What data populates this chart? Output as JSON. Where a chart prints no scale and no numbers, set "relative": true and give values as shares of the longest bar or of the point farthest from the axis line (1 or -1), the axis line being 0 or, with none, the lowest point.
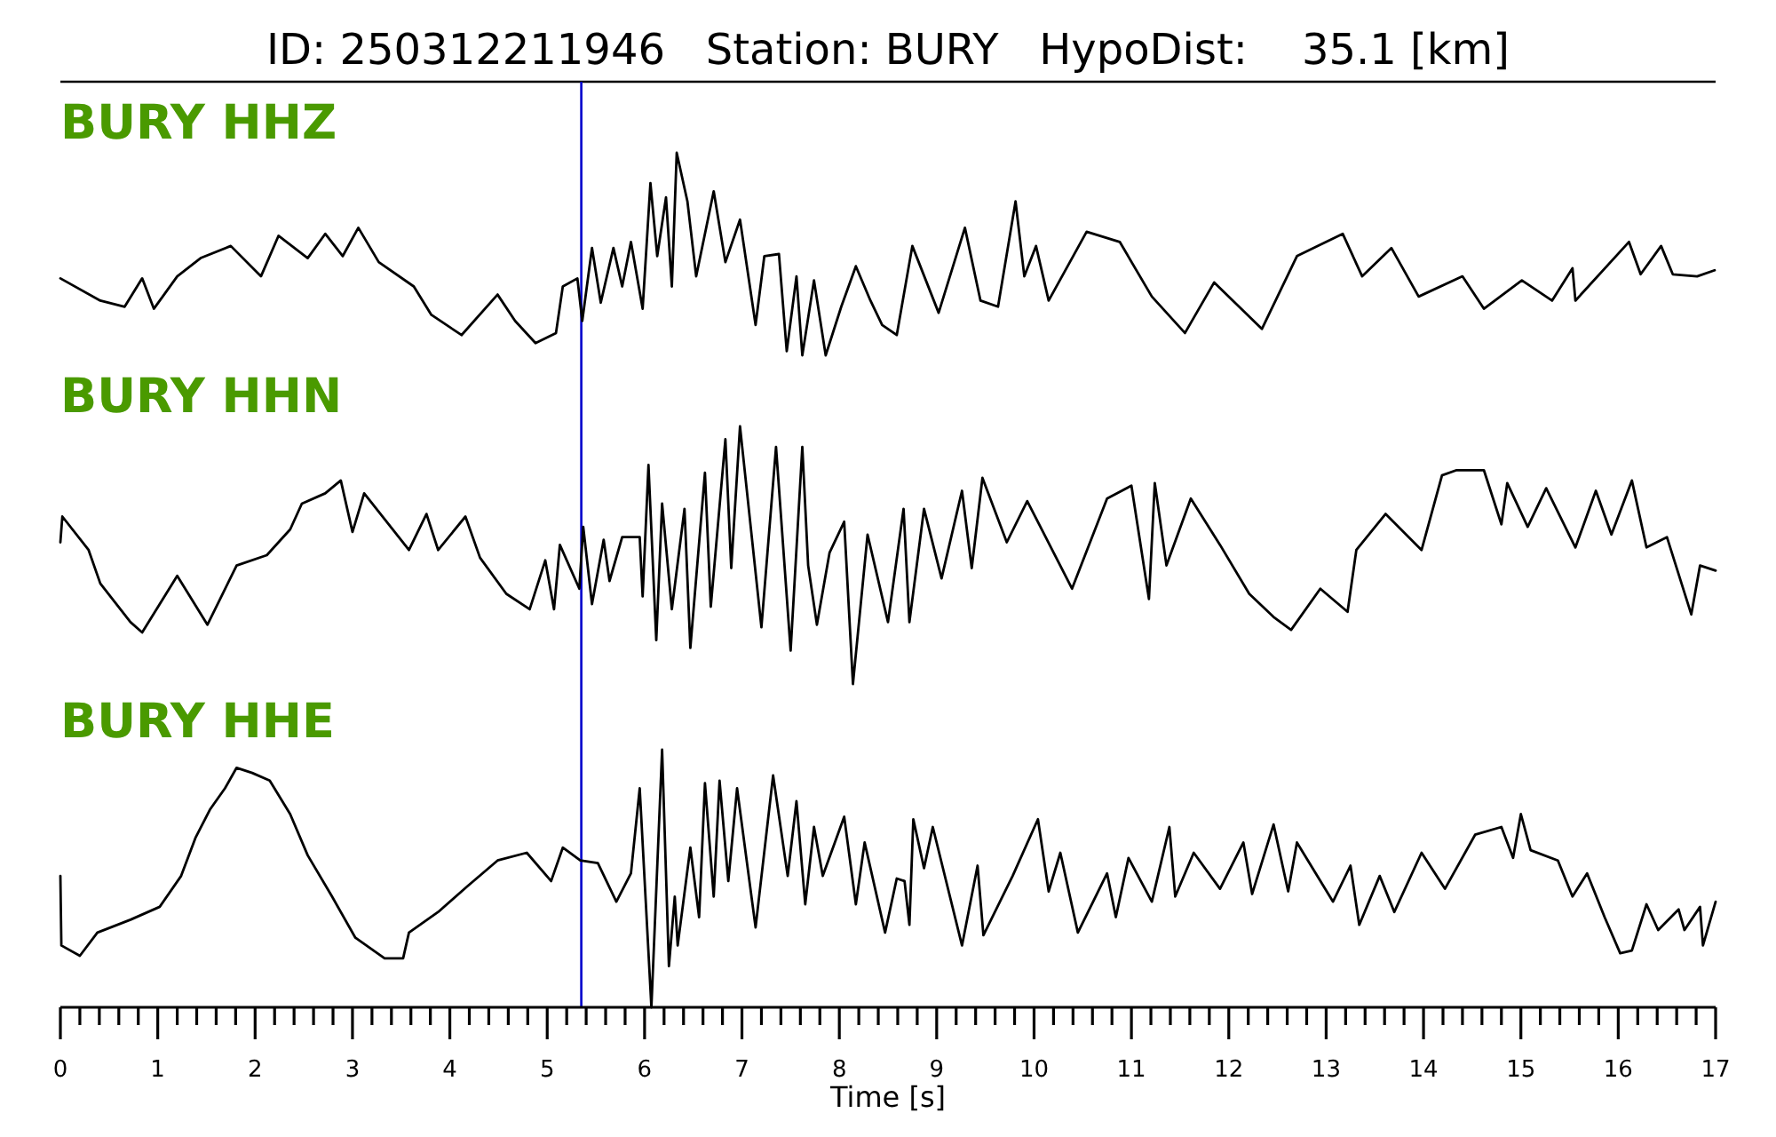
{
  "chart_data": [
    {
      "type": "line",
      "title": "ID: 250312211946   Station: BURY   HypoDist:    35.1 [km]",
      "subtitle": "BURY HHZ",
      "relative": true,
      "tick_labels": false,
      "xlim": [
        0,
        17
      ],
      "ref_lines": [
        {
          "axis": "x",
          "value": 5.35,
          "color": "#0000cc"
        }
      ],
      "x": [
        0,
        0.41,
        0.66,
        0.84,
        0.96,
        1.2,
        1.44,
        1.75,
        2.06,
        2.24,
        2.54,
        2.72,
        2.9,
        3.06,
        3.27,
        3.63,
        3.81,
        4.12,
        4.49,
        4.67,
        4.88,
        5.09,
        5.16,
        5.31,
        5.36,
        5.46,
        5.55,
        5.68,
        5.77,
        5.86,
        5.98,
        6.06,
        6.13,
        6.22,
        6.28,
        6.33,
        6.44,
        6.53,
        6.71,
        6.83,
        6.98,
        7.14,
        7.23,
        7.38,
        7.46,
        7.56,
        7.62,
        7.74,
        7.86,
        8.02,
        8.17,
        8.32,
        8.44,
        8.59,
        8.75,
        9.02,
        9.29,
        9.45,
        9.63,
        9.81,
        9.9,
        10.02,
        10.15,
        10.54,
        10.88,
        11.21,
        11.55,
        11.85,
        12.34,
        12.7,
        13.17,
        13.37,
        13.67,
        13.95,
        14.4,
        14.62,
        15.01,
        15.32,
        15.53,
        15.56,
        16.11,
        16.23,
        16.44,
        16.56,
        16.81,
        16.99
      ],
      "series": [
        {
          "color": "#000000",
          "values": [
            0.38,
            0.27,
            0.24,
            0.38,
            0.23,
            0.39,
            0.48,
            0.54,
            0.39,
            0.59,
            0.48,
            0.6,
            0.49,
            0.63,
            0.46,
            0.34,
            0.2,
            0.1,
            0.3,
            0.17,
            0.06,
            0.11,
            0.34,
            0.38,
            0.17,
            0.53,
            0.26,
            0.53,
            0.34,
            0.56,
            0.23,
            0.85,
            0.49,
            0.78,
            0.34,
            1,
            0.76,
            0.39,
            0.81,
            0.46,
            0.67,
            0.15,
            0.49,
            0.5,
            0.02,
            0.39,
            0,
            0.37,
            0,
            0.24,
            0.44,
            0.27,
            0.15,
            0.1,
            0.54,
            0.21,
            0.63,
            0.27,
            0.24,
            0.76,
            0.39,
            0.54,
            0.27,
            0.61,
            0.56,
            0.29,
            0.11,
            0.36,
            0.13,
            0.49,
            0.6,
            0.39,
            0.53,
            0.29,
            0.39,
            0.23,
            0.37,
            0.27,
            0.43,
            0.27,
            0.56,
            0.4,
            0.54,
            0.4,
            0.39,
            0.42
          ]
        }
      ]
    },
    {
      "type": "line",
      "subtitle": "BURY HHN",
      "relative": true,
      "tick_labels": false,
      "xlim": [
        0,
        17
      ],
      "ref_lines": [
        {
          "axis": "x",
          "value": 5.35,
          "color": "#0000cc"
        }
      ],
      "x": [
        0,
        0.02,
        0.29,
        0.41,
        0.72,
        0.84,
        1.2,
        1.51,
        1.81,
        2.12,
        2.36,
        2.48,
        2.72,
        2.88,
        3.0,
        3.12,
        3.58,
        3.76,
        3.88,
        4.16,
        4.31,
        4.58,
        4.82,
        4.98,
        5.07,
        5.13,
        5.33,
        5.37,
        5.46,
        5.58,
        5.64,
        5.77,
        5.95,
        5.98,
        6.04,
        6.12,
        6.18,
        6.28,
        6.41,
        6.47,
        6.62,
        6.68,
        6.83,
        6.89,
        6.98,
        7.2,
        7.35,
        7.5,
        7.62,
        7.68,
        7.77,
        7.9,
        8.05,
        8.14,
        8.29,
        8.5,
        8.66,
        8.72,
        8.87,
        9.05,
        9.26,
        9.36,
        9.47,
        9.72,
        9.93,
        10.39,
        10.75,
        11.0,
        11.18,
        11.24,
        11.36,
        11.61,
        11.91,
        12.21,
        12.46,
        12.64,
        12.94,
        13.22,
        13.31,
        13.61,
        13.98,
        14.19,
        14.34,
        14.62,
        14.8,
        14.86,
        15.07,
        15.26,
        15.56,
        15.77,
        15.93,
        16.14,
        16.29,
        16.5,
        16.75,
        16.84,
        17
      ],
      "series": [
        {
          "color": "#000000",
          "values": [
            0.55,
            0.65,
            0.52,
            0.39,
            0.24,
            0.2,
            0.42,
            0.23,
            0.46,
            0.5,
            0.6,
            0.7,
            0.74,
            0.79,
            0.59,
            0.74,
            0.52,
            0.66,
            0.52,
            0.65,
            0.49,
            0.35,
            0.29,
            0.48,
            0.29,
            0.54,
            0.37,
            0.61,
            0.31,
            0.56,
            0.4,
            0.57,
            0.57,
            0.34,
            0.85,
            0.17,
            0.7,
            0.29,
            0.68,
            0.14,
            0.82,
            0.3,
            0.95,
            0.45,
            1,
            0.22,
            0.92,
            0.13,
            0.92,
            0.46,
            0.23,
            0.51,
            0.63,
            0,
            0.58,
            0.24,
            0.68,
            0.24,
            0.68,
            0.41,
            0.75,
            0.45,
            0.8,
            0.55,
            0.71,
            0.37,
            0.72,
            0.77,
            0.33,
            0.78,
            0.46,
            0.72,
            0.54,
            0.35,
            0.26,
            0.21,
            0.37,
            0.28,
            0.52,
            0.66,
            0.52,
            0.81,
            0.83,
            0.83,
            0.62,
            0.78,
            0.61,
            0.76,
            0.53,
            0.75,
            0.58,
            0.79,
            0.53,
            0.57,
            0.27,
            0.46,
            0.44
          ]
        }
      ]
    },
    {
      "type": "line",
      "subtitle": "BURY HHE",
      "xlabel": "Time [s]",
      "relative": true,
      "tick_labels": "x",
      "xlim": [
        0,
        17
      ],
      "xticks": [
        0,
        {
          "value": 0.2,
          "label": null
        },
        {
          "value": 0.4,
          "label": null
        },
        {
          "value": 0.6,
          "label": null
        },
        {
          "value": 0.8,
          "label": null
        },
        1,
        {
          "value": 1.2,
          "label": null
        },
        {
          "value": 1.4,
          "label": null
        },
        {
          "value": 1.6,
          "label": null
        },
        {
          "value": 1.8,
          "label": null
        },
        2,
        {
          "value": 2.2,
          "label": null
        },
        {
          "value": 2.4,
          "label": null
        },
        {
          "value": 2.6,
          "label": null
        },
        {
          "value": 2.8,
          "label": null
        },
        3,
        {
          "value": 3.2,
          "label": null
        },
        {
          "value": 3.4,
          "label": null
        },
        {
          "value": 3.6,
          "label": null
        },
        {
          "value": 3.8,
          "label": null
        },
        4,
        {
          "value": 4.2,
          "label": null
        },
        {
          "value": 4.4,
          "label": null
        },
        {
          "value": 4.6,
          "label": null
        },
        {
          "value": 4.8,
          "label": null
        },
        5,
        {
          "value": 5.2,
          "label": null
        },
        {
          "value": 5.4,
          "label": null
        },
        {
          "value": 5.6,
          "label": null
        },
        {
          "value": 5.8,
          "label": null
        },
        6,
        {
          "value": 6.2,
          "label": null
        },
        {
          "value": 6.4,
          "label": null
        },
        {
          "value": 6.6,
          "label": null
        },
        {
          "value": 6.8,
          "label": null
        },
        7,
        {
          "value": 7.2,
          "label": null
        },
        {
          "value": 7.4,
          "label": null
        },
        {
          "value": 7.6,
          "label": null
        },
        {
          "value": 7.8,
          "label": null
        },
        8,
        {
          "value": 8.2,
          "label": null
        },
        {
          "value": 8.4,
          "label": null
        },
        {
          "value": 8.6,
          "label": null
        },
        {
          "value": 8.8,
          "label": null
        },
        9,
        {
          "value": 9.2,
          "label": null
        },
        {
          "value": 9.4,
          "label": null
        },
        {
          "value": 9.6,
          "label": null
        },
        {
          "value": 9.8,
          "label": null
        },
        10,
        {
          "value": 10.2,
          "label": null
        },
        {
          "value": 10.4,
          "label": null
        },
        {
          "value": 10.6,
          "label": null
        },
        {
          "value": 10.8,
          "label": null
        },
        11,
        {
          "value": 11.2,
          "label": null
        },
        {
          "value": 11.4,
          "label": null
        },
        {
          "value": 11.6,
          "label": null
        },
        {
          "value": 11.8,
          "label": null
        },
        12,
        {
          "value": 12.2,
          "label": null
        },
        {
          "value": 12.4,
          "label": null
        },
        {
          "value": 12.6,
          "label": null
        },
        {
          "value": 12.8,
          "label": null
        },
        13,
        {
          "value": 13.2,
          "label": null
        },
        {
          "value": 13.4,
          "label": null
        },
        {
          "value": 13.6,
          "label": null
        },
        {
          "value": 13.8,
          "label": null
        },
        14,
        {
          "value": 14.2,
          "label": null
        },
        {
          "value": 14.4,
          "label": null
        },
        {
          "value": 14.6,
          "label": null
        },
        {
          "value": 14.8,
          "label": null
        },
        15,
        {
          "value": 15.2,
          "label": null
        },
        {
          "value": 15.4,
          "label": null
        },
        {
          "value": 15.6,
          "label": null
        },
        {
          "value": 15.8,
          "label": null
        },
        16,
        {
          "value": 16.2,
          "label": null
        },
        {
          "value": 16.4,
          "label": null
        },
        {
          "value": 16.6,
          "label": null
        },
        {
          "value": 16.8,
          "label": null
        },
        17
      ],
      "ref_lines": [
        {
          "axis": "x",
          "value": 5.35,
          "color": "#0000cc"
        }
      ],
      "x": [
        0,
        0.01,
        0.2,
        0.38,
        0.72,
        1.02,
        1.24,
        1.39,
        1.54,
        1.69,
        1.81,
        1.97,
        2.15,
        2.36,
        2.54,
        2.79,
        3.03,
        3.33,
        3.52,
        3.58,
        3.88,
        4.18,
        4.49,
        4.79,
        5.04,
        5.16,
        5.34,
        5.52,
        5.71,
        5.86,
        5.95,
        6.07,
        6.18,
        6.25,
        6.31,
        6.34,
        6.47,
        6.56,
        6.62,
        6.71,
        6.77,
        6.86,
        6.95,
        7.14,
        7.32,
        7.47,
        7.56,
        7.65,
        7.74,
        7.83,
        8.05,
        8.17,
        8.26,
        8.47,
        8.59,
        8.67,
        8.72,
        8.76,
        8.87,
        8.96,
        9.26,
        9.42,
        9.48,
        9.78,
        10.04,
        10.15,
        10.27,
        10.45,
        10.75,
        10.84,
        10.97,
        11.21,
        11.39,
        11.45,
        11.64,
        11.91,
        12.15,
        12.24,
        12.46,
        12.61,
        12.7,
        13.07,
        13.25,
        13.34,
        13.55,
        13.7,
        13.98,
        14.22,
        14.53,
        14.8,
        14.92,
        15.0,
        15.1,
        15.38,
        15.53,
        15.68,
        15.86,
        16.02,
        16.14,
        16.29,
        16.41,
        16.62,
        16.68,
        16.84,
        16.87,
        17
      ],
      "series": [
        {
          "color": "#000000",
          "values": [
            0.51,
            0.24,
            0.2,
            0.29,
            0.34,
            0.39,
            0.51,
            0.66,
            0.77,
            0.85,
            0.93,
            0.91,
            0.88,
            0.75,
            0.59,
            0.43,
            0.27,
            0.19,
            0.19,
            0.29,
            0.37,
            0.47,
            0.57,
            0.6,
            0.49,
            0.62,
            0.57,
            0.56,
            0.41,
            0.52,
            0.85,
            0,
            1,
            0.16,
            0.43,
            0.24,
            0.62,
            0.35,
            0.87,
            0.43,
            0.88,
            0.49,
            0.85,
            0.31,
            0.9,
            0.51,
            0.8,
            0.4,
            0.7,
            0.51,
            0.74,
            0.4,
            0.64,
            0.29,
            0.5,
            0.49,
            0.32,
            0.73,
            0.54,
            0.7,
            0.24,
            0.55,
            0.28,
            0.51,
            0.73,
            0.45,
            0.6,
            0.29,
            0.52,
            0.35,
            0.58,
            0.41,
            0.7,
            0.43,
            0.6,
            0.46,
            0.64,
            0.44,
            0.71,
            0.45,
            0.64,
            0.41,
            0.55,
            0.32,
            0.51,
            0.37,
            0.6,
            0.46,
            0.67,
            0.7,
            0.58,
            0.75,
            0.61,
            0.57,
            0.43,
            0.52,
            0.35,
            0.21,
            0.22,
            0.4,
            0.3,
            0.38,
            0.3,
            0.39,
            0.24,
            0.41
          ]
        }
      ]
    }
  ]
}
